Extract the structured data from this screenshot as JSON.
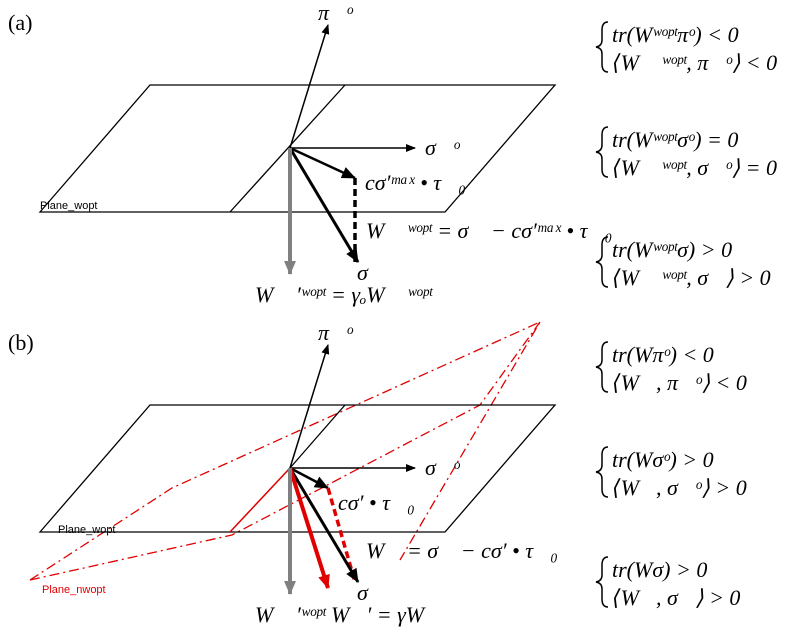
{
  "panels": [
    {
      "label": "(a)",
      "plane_label": "Plane_wopt",
      "pi": "π⃗ᵒ",
      "sigma_o": "σ⃗ᵒ",
      "c_tau": "cσ′ᵐᵃˣ • τ⃗₀",
      "w_eq": "W⃗ ʷᵒᵖᵗ = σ⃗ − cσ′ᵐᵃˣ • τ⃗₀",
      "sigma": "σ⃗",
      "w_prime": "W⃗ ′ʷᵒᵖᵗ = γₒW⃗ ʷᵒᵖᵗ",
      "conditions": [
        [
          "tr(Wʷᵒᵖᵗπᵒ) < 0",
          "⟨W⃗ ʷᵒᵖᵗ, π⃗ᵒ⟩ < 0"
        ],
        [
          "tr(Wʷᵒᵖᵗσᵒ) = 0",
          "⟨W⃗ ʷᵒᵖᵗ, σ⃗ᵒ⟩ = 0"
        ],
        [
          "tr(Wʷᵒᵖᵗσ) > 0",
          "⟨W⃗ ʷᵒᵖᵗ, σ⃗⟩ > 0"
        ]
      ]
    },
    {
      "label": "(b)",
      "plane_label": "Plane_wopt",
      "plane_nwopt_label": "Plane_nwopt",
      "pi": "π⃗ᵒ",
      "sigma_o": "σ⃗ᵒ",
      "c_tau": "cσ′ • τ⃗₀",
      "w_eq": "W⃗ = σ⃗ − cσ′ • τ⃗₀",
      "sigma": "σ⃗",
      "w_prime": "W⃗ ′ʷᵒᵖᵗ W⃗′ = γW⃗",
      "conditions": [
        [
          "tr(Wπᵒ) < 0",
          "⟨W⃗, π⃗ᵒ⟩ < 0"
        ],
        [
          "tr(Wσᵒ) > 0",
          "⟨W⃗, σ⃗ᵒ⟩ > 0"
        ],
        [
          "tr(Wσ) > 0",
          "⟨W⃗, σ⃗⟩ > 0"
        ]
      ]
    }
  ]
}
